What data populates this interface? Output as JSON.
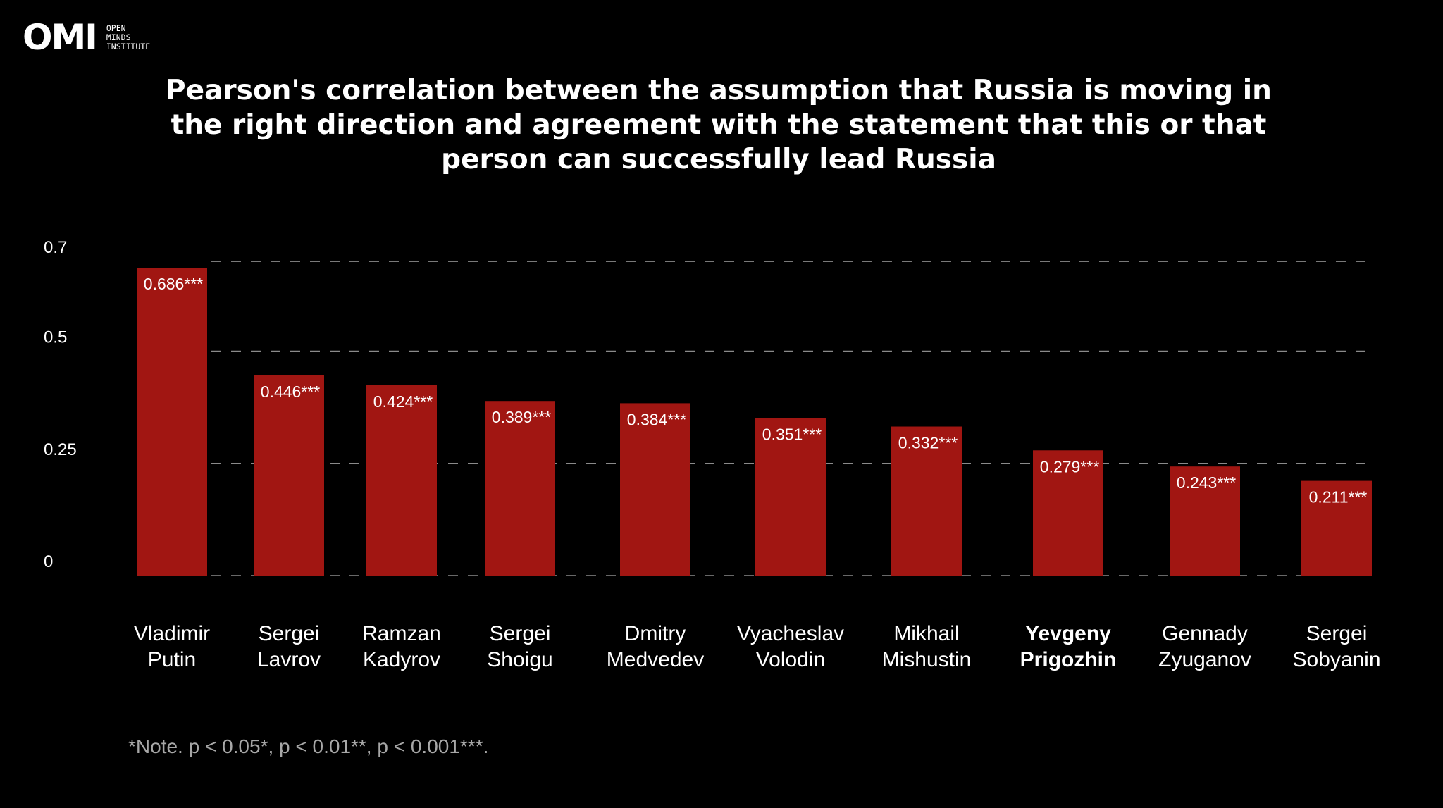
{
  "brand": {
    "logo_text": "OMI",
    "logo_subtext": "OPEN\nMINDS\nINSTITUTE"
  },
  "colors": {
    "background": "#000000",
    "bar": "#a11612",
    "grid": "#8a8a8a",
    "text": "#ffffff",
    "note": "#a7a7a7"
  },
  "chart_data": {
    "type": "bar",
    "title": "Pearson's correlation between the assumption that Russia is moving in the right direction and agreement with the statement that this or that person can successfully lead Russia",
    "categories": [
      [
        "Vladimir",
        "Putin"
      ],
      [
        "Sergei",
        "Lavrov"
      ],
      [
        "Ramzan",
        "Kadyrov"
      ],
      [
        "Sergei",
        "Shoigu"
      ],
      [
        "Dmitry",
        "Medvedev"
      ],
      [
        "Vyacheslav",
        "Volodin"
      ],
      [
        "Mikhail",
        "Mishustin"
      ],
      [
        "Yevgeny",
        "Prigozhin"
      ],
      [
        "Gennady",
        "Zyuganov"
      ],
      [
        "Sergei",
        "Sobyanin"
      ]
    ],
    "highlight_category_index": 7,
    "values": [
      0.686,
      0.446,
      0.424,
      0.389,
      0.384,
      0.351,
      0.332,
      0.279,
      0.243,
      0.211
    ],
    "value_labels": [
      "0.686***",
      "0.446***",
      "0.424***",
      "0.389***",
      "0.384***",
      "0.351***",
      "0.332***",
      "0.279***",
      "0.243***",
      "0.211***"
    ],
    "yticks": [
      {
        "value": 0,
        "label": "0"
      },
      {
        "value": 0.25,
        "label": "0.25"
      },
      {
        "value": 0.5,
        "label": "0.5"
      },
      {
        "value": 0.7,
        "label": "0.7"
      }
    ],
    "ylim": [
      0,
      0.7
    ],
    "grid": "dashed",
    "legend": "none",
    "note": "*Note. p < 0.05*, p < 0.01**, p < 0.001***."
  }
}
